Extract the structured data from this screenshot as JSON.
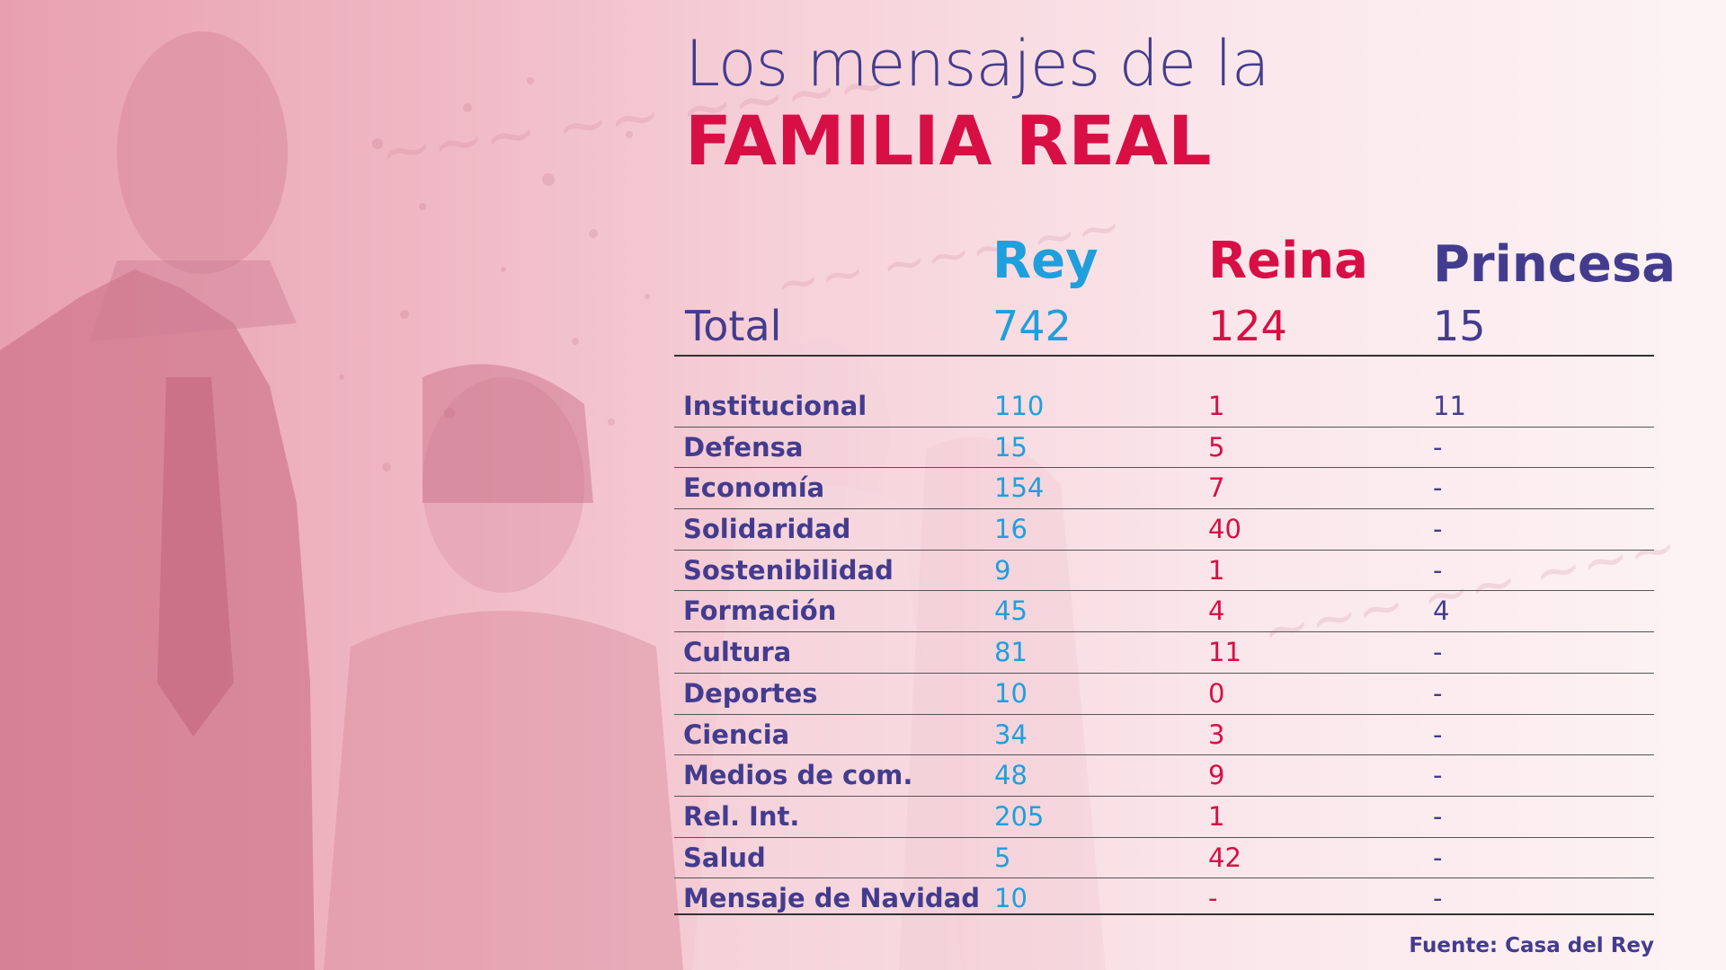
{
  "title": {
    "line1": "Los mensajes de la",
    "line2": "FAMILIA REAL"
  },
  "columns": {
    "rey": "Rey",
    "reina": "Reina",
    "princesa": "Princesa"
  },
  "totals": {
    "label": "Total",
    "rey": "742",
    "reina": "124",
    "princesa": "15"
  },
  "source": "Fuente: Casa del Rey",
  "colors": {
    "rey": "#1f9fdc",
    "reina": "#d70f45",
    "princesa": "#433c8e"
  },
  "chart_data": {
    "type": "table",
    "title": "Los mensajes de la FAMILIA REAL",
    "columns": [
      "Rey",
      "Reina",
      "Princesa"
    ],
    "totals": {
      "Rey": 742,
      "Reina": 124,
      "Princesa": 15
    },
    "rows": [
      {
        "category": "Institucional",
        "rey": "110",
        "reina": "1",
        "princesa": "11"
      },
      {
        "category": "Defensa",
        "rey": "15",
        "reina": "5",
        "princesa": "-"
      },
      {
        "category": "Economía",
        "rey": "154",
        "reina": "7",
        "princesa": "-"
      },
      {
        "category": "Solidaridad",
        "rey": "16",
        "reina": "40",
        "princesa": "-"
      },
      {
        "category": "Sostenibilidad",
        "rey": "9",
        "reina": "1",
        "princesa": "-"
      },
      {
        "category": "Formación",
        "rey": "45",
        "reina": "4",
        "princesa": "4"
      },
      {
        "category": "Cultura",
        "rey": "81",
        "reina": "11",
        "princesa": "-"
      },
      {
        "category": "Deportes",
        "rey": "10",
        "reina": "0",
        "princesa": "-"
      },
      {
        "category": "Ciencia",
        "rey": "34",
        "reina": "3",
        "princesa": "-"
      },
      {
        "category": "Medios de com.",
        "rey": "48",
        "reina": "9",
        "princesa": "-"
      },
      {
        "category": "Rel. Int.",
        "rey": "205",
        "reina": "1",
        "princesa": "-"
      },
      {
        "category": "Salud",
        "rey": "5",
        "reina": "42",
        "princesa": "-"
      },
      {
        "category": "Mensaje de Navidad",
        "rey": "10",
        "reina": "-",
        "princesa": "-"
      }
    ]
  }
}
